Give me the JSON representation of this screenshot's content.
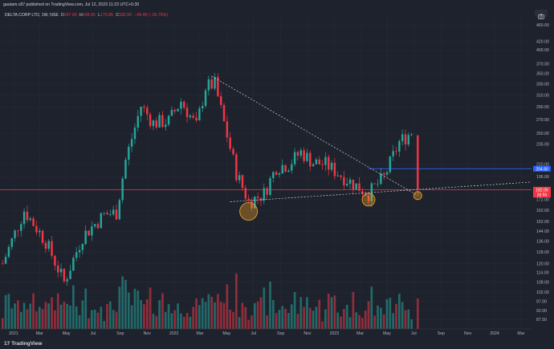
{
  "header": {
    "publisher_line": "gautam.c87 published on TradingView.com, Jul 12, 2023 11:23 UTC+5:30"
  },
  "legend": {
    "symbol": "DELTA CORP LTD, 1W, NSE",
    "o_label": "O",
    "o_value": "247.00",
    "h_label": "H",
    "h_value": "248.00",
    "l_label": "L",
    "l_value": "175.85",
    "c_label": "C",
    "c_value": "182.00",
    "change": "−66.45 (−26.75%)"
  },
  "footer": {
    "brand": "TradingView",
    "brand_mark": "17"
  },
  "colors": {
    "background": "#1e222d",
    "up": "#26a69a",
    "down": "#f23645",
    "blue_line": "#2962ff",
    "red_line": "#f23645",
    "circle": "#f5a623",
    "text": "#d1d4dc"
  },
  "icons": {
    "camera": "camera-icon"
  },
  "chart_data": {
    "type": "candlestick",
    "y_scale": "log",
    "ylim": [
      83,
      480
    ],
    "xlim": [
      "2020-12-01",
      "2024-03-25"
    ],
    "price_ticks": [
      "460.00",
      "420.00",
      "400.00",
      "370.00",
      "350.00",
      "330.00",
      "310.00",
      "290.00",
      "270.00",
      "250.00",
      "235.00",
      "210.00",
      "196.00",
      "182.00",
      "172.00",
      "162.00",
      "152.00",
      "144.00",
      "136.00",
      "128.00",
      "120.00",
      "114.00",
      "108.00",
      "102.00",
      "97.00",
      "92.00",
      "87.50"
    ],
    "time_ticks": [
      {
        "label": "2021",
        "date": "2021-01-01"
      },
      {
        "label": "Mar",
        "date": "2021-03-01"
      },
      {
        "label": "May",
        "date": "2021-05-01"
      },
      {
        "label": "Jul",
        "date": "2021-07-01"
      },
      {
        "label": "Sep",
        "date": "2021-09-01"
      },
      {
        "label": "Nov",
        "date": "2021-11-01"
      },
      {
        "label": "2022",
        "date": "2022-01-01"
      },
      {
        "label": "Mar",
        "date": "2022-03-01"
      },
      {
        "label": "May",
        "date": "2022-05-01"
      },
      {
        "label": "Jul",
        "date": "2022-07-01"
      },
      {
        "label": "Sep",
        "date": "2022-09-01"
      },
      {
        "label": "Nov",
        "date": "2022-11-01"
      },
      {
        "label": "2023",
        "date": "2023-01-01"
      },
      {
        "label": "Mar",
        "date": "2023-03-01"
      },
      {
        "label": "May",
        "date": "2023-05-01"
      },
      {
        "label": "Jul",
        "date": "2023-07-01"
      },
      {
        "label": "Sep",
        "date": "2023-09-01"
      },
      {
        "label": "Nov",
        "date": "2023-11-01"
      },
      {
        "label": "2024",
        "date": "2024-01-01"
      },
      {
        "label": "Mar",
        "date": "2024-03-01"
      }
    ],
    "price_badges": [
      {
        "label": "204.80",
        "value": 204.8,
        "color": "#2962ff"
      },
      {
        "label": "182.00",
        "value": 182,
        "color": "#f23645"
      },
      {
        "label": "2d 5h",
        "value": 178.5,
        "color": "#f23645"
      }
    ],
    "horizontal_lines": [
      {
        "value": 204.8,
        "color": "#2962ff",
        "from": "2023-03-20"
      },
      {
        "value": 182,
        "color": "#f23645",
        "from": "2020-12-01"
      }
    ],
    "trendlines": [
      {
        "from": {
          "date": "2022-03-28",
          "value": 345
        },
        "to": {
          "date": "2023-07-10",
          "value": 176
        }
      },
      {
        "from": {
          "date": "2022-05-09",
          "value": 170
        },
        "to": {
          "date": "2024-03-25",
          "value": 190
        }
      }
    ],
    "highlight_circles": [
      {
        "date": "2022-06-20",
        "value": 161
      },
      {
        "date": "2023-03-20",
        "value": 172
      },
      {
        "date": "2023-07-10",
        "value": 176
      }
    ],
    "anchor_points": [
      {
        "date": "2020-12-07",
        "value": 120
      },
      {
        "date": "2021-01-25",
        "value": 162
      },
      {
        "date": "2021-03-15",
        "value": 136
      },
      {
        "date": "2021-04-26",
        "value": 108
      },
      {
        "date": "2021-06-07",
        "value": 140
      },
      {
        "date": "2021-07-26",
        "value": 158
      },
      {
        "date": "2021-08-23",
        "value": 160
      },
      {
        "date": "2021-09-13",
        "value": 215
      },
      {
        "date": "2021-10-18",
        "value": 292
      },
      {
        "date": "2021-11-15",
        "value": 265
      },
      {
        "date": "2021-12-20",
        "value": 268
      },
      {
        "date": "2022-01-17",
        "value": 300
      },
      {
        "date": "2022-02-21",
        "value": 260
      },
      {
        "date": "2022-03-14",
        "value": 325
      },
      {
        "date": "2022-04-04",
        "value": 330
      },
      {
        "date": "2022-04-25",
        "value": 265
      },
      {
        "date": "2022-05-23",
        "value": 200
      },
      {
        "date": "2022-06-20",
        "value": 170
      },
      {
        "date": "2022-07-25",
        "value": 178
      },
      {
        "date": "2022-08-22",
        "value": 207
      },
      {
        "date": "2022-09-19",
        "value": 210
      },
      {
        "date": "2022-10-17",
        "value": 225
      },
      {
        "date": "2022-11-14",
        "value": 212
      },
      {
        "date": "2022-12-12",
        "value": 210
      },
      {
        "date": "2023-01-09",
        "value": 200
      },
      {
        "date": "2023-02-13",
        "value": 188
      },
      {
        "date": "2023-03-20",
        "value": 178
      },
      {
        "date": "2023-04-24",
        "value": 195
      },
      {
        "date": "2023-05-29",
        "value": 238
      },
      {
        "date": "2023-06-26",
        "value": 252
      },
      {
        "date": "2023-07-03",
        "value": 248
      }
    ],
    "last_candle": {
      "date": "2023-07-10",
      "open": 247,
      "high": 248,
      "low": 175.85,
      "close": 182
    }
  }
}
